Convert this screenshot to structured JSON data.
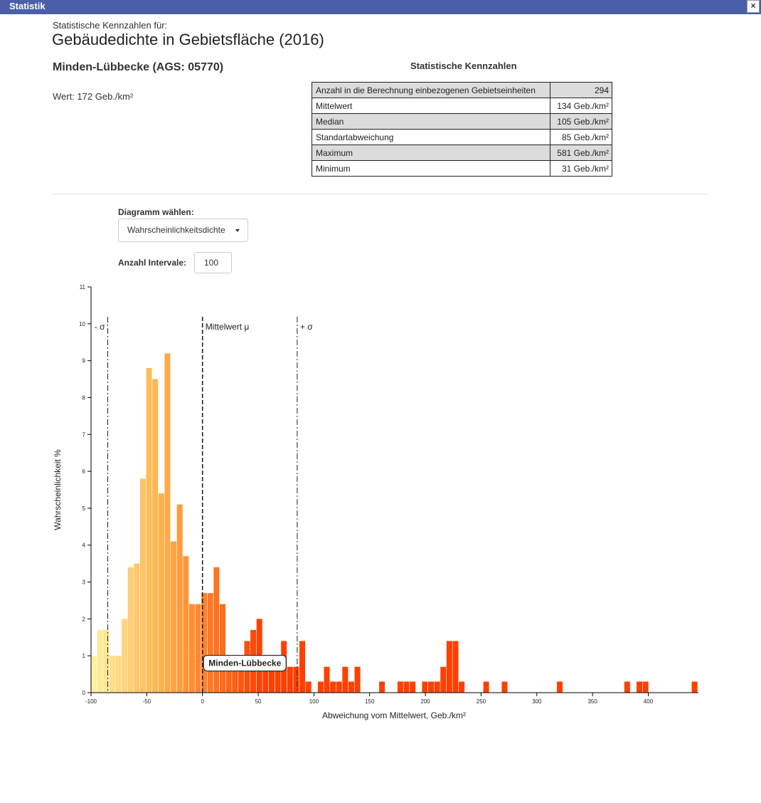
{
  "window": {
    "title": "Statistik",
    "close_label": "×"
  },
  "header": {
    "subtitle": "Statistische Kennzahlen für:",
    "title": "Gebäudedichte in Gebietsfläche (2016)",
    "region": "Minden-Lübbecke (AGS: 05770)",
    "value": "Wert: 172 Geb./km²"
  },
  "stats": {
    "title": "Statistische Kennzahlen",
    "rows": [
      {
        "label": "Anzahl in die Berechnung einbezogenen Gebietseinheiten",
        "value": "294"
      },
      {
        "label": "Mittelwert",
        "value": "134 Geb./km²"
      },
      {
        "label": "Median",
        "value": "105 Geb./km²"
      },
      {
        "label": "Standartabweichung",
        "value": "85 Geb./km²"
      },
      {
        "label": "Maximum",
        "value": "581 Geb./km²"
      },
      {
        "label": "Minimum",
        "value": "31 Geb./km²"
      }
    ]
  },
  "controls": {
    "diagram_label": "Diagramm wählen:",
    "diagram_selected": "Wahrscheinlichkeitsdichte",
    "intervals_label": "Anzahl Intervale:",
    "intervals_value": "100"
  },
  "colors": {
    "low": "#fff0a0",
    "mid": "#feb24c",
    "high": "#ff4000"
  },
  "chart_data": {
    "type": "bar",
    "xlabel": "Abweichung vom Mittelwert, Geb./km²",
    "ylabel": "Wahrscheinlichkeit %",
    "xlim": [
      -100,
      445
    ],
    "ylim": [
      0,
      11
    ],
    "xticks": [
      -100,
      -50,
      0,
      50,
      100,
      150,
      200,
      250,
      300,
      350,
      400
    ],
    "yticks": [
      0,
      1,
      2,
      3,
      4,
      5,
      6,
      7,
      8,
      9,
      10,
      11
    ],
    "bin_width": 5.5,
    "bins": [
      {
        "x": -100,
        "y": 1.0
      },
      {
        "x": -94.5,
        "y": 1.7
      },
      {
        "x": -89,
        "y": 1.7
      },
      {
        "x": -83.5,
        "y": 1.0
      },
      {
        "x": -78,
        "y": 1.0
      },
      {
        "x": -72.5,
        "y": 2.0
      },
      {
        "x": -67,
        "y": 3.4
      },
      {
        "x": -61.5,
        "y": 3.5
      },
      {
        "x": -56,
        "y": 5.8
      },
      {
        "x": -50.5,
        "y": 8.8
      },
      {
        "x": -45,
        "y": 8.5
      },
      {
        "x": -39.5,
        "y": 5.4
      },
      {
        "x": -34,
        "y": 9.2
      },
      {
        "x": -28.5,
        "y": 4.1
      },
      {
        "x": -23,
        "y": 5.1
      },
      {
        "x": -17.5,
        "y": 3.7
      },
      {
        "x": -12,
        "y": 2.4
      },
      {
        "x": -6.5,
        "y": 2.4
      },
      {
        "x": -1,
        "y": 2.7
      },
      {
        "x": 4.5,
        "y": 2.7
      },
      {
        "x": 10,
        "y": 3.4
      },
      {
        "x": 15.5,
        "y": 2.4
      },
      {
        "x": 21,
        "y": 1.0
      },
      {
        "x": 26.5,
        "y": 1.0
      },
      {
        "x": 32,
        "y": 1.0
      },
      {
        "x": 37.5,
        "y": 1.4
      },
      {
        "x": 43,
        "y": 1.7
      },
      {
        "x": 48.5,
        "y": 2.0
      },
      {
        "x": 54,
        "y": 1.0
      },
      {
        "x": 59.5,
        "y": 0.7
      },
      {
        "x": 65,
        "y": 0.7
      },
      {
        "x": 70.5,
        "y": 1.4
      },
      {
        "x": 76,
        "y": 0.7
      },
      {
        "x": 81.5,
        "y": 0.7
      },
      {
        "x": 87,
        "y": 1.4
      },
      {
        "x": 92.5,
        "y": 0.3
      },
      {
        "x": 103.5,
        "y": 0.3
      },
      {
        "x": 109,
        "y": 0.7
      },
      {
        "x": 114.5,
        "y": 0.3
      },
      {
        "x": 120,
        "y": 0.3
      },
      {
        "x": 125.5,
        "y": 0.7
      },
      {
        "x": 131,
        "y": 0.3
      },
      {
        "x": 136.5,
        "y": 0.7
      },
      {
        "x": 158.5,
        "y": 0.3
      },
      {
        "x": 175,
        "y": 0.3
      },
      {
        "x": 180.5,
        "y": 0.3
      },
      {
        "x": 186,
        "y": 0.3
      },
      {
        "x": 197,
        "y": 0.3
      },
      {
        "x": 202.5,
        "y": 0.3
      },
      {
        "x": 208,
        "y": 0.3
      },
      {
        "x": 213.5,
        "y": 0.7
      },
      {
        "x": 219,
        "y": 1.4
      },
      {
        "x": 224.5,
        "y": 1.4
      },
      {
        "x": 230,
        "y": 0.3
      },
      {
        "x": 252,
        "y": 0.3
      },
      {
        "x": 268.5,
        "y": 0.3
      },
      {
        "x": 318,
        "y": 0.3
      },
      {
        "x": 378.5,
        "y": 0.3
      },
      {
        "x": 389.5,
        "y": 0.3
      },
      {
        "x": 395,
        "y": 0.3
      },
      {
        "x": 439,
        "y": 0.3
      }
    ],
    "reference_lines": [
      {
        "x": -85,
        "label": "- σ",
        "style": "dashdot"
      },
      {
        "x": 0,
        "label": "Mittelwert μ",
        "style": "dashed"
      },
      {
        "x": 85,
        "label": "+ σ",
        "style": "dashdot"
      }
    ],
    "marker": {
      "x": 38,
      "y": 0.8,
      "label": "Minden-Lübbecke"
    }
  }
}
